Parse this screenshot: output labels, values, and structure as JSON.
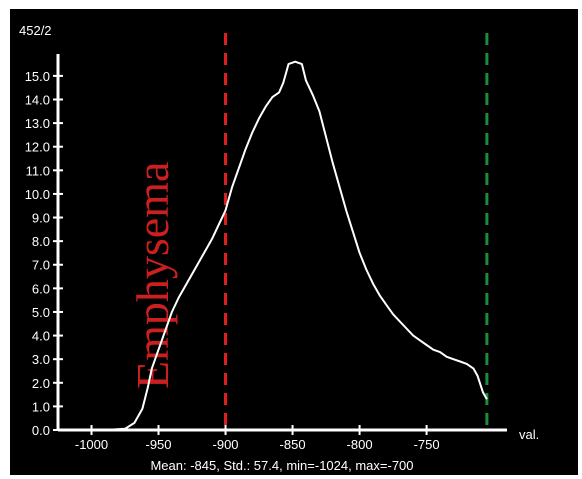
{
  "header": {
    "index_label": "452/2"
  },
  "footer": {
    "stats": "Mean: -845, Std.: 57.4, min=-1024, max=-700"
  },
  "chart_data": {
    "type": "line",
    "xlabel": "val.",
    "ylabel": "",
    "xlim": [
      -1025,
      -690
    ],
    "ylim": [
      0,
      15.8
    ],
    "x_ticks": [
      -1000,
      -950,
      -900,
      -850,
      -800,
      -750
    ],
    "y_ticks": [
      0.0,
      1.0,
      2.0,
      3.0,
      4.0,
      5.0,
      6.0,
      7.0,
      8.0,
      9.0,
      10.0,
      11.0,
      12.0,
      13.0,
      14.0,
      15.0
    ],
    "series": [
      {
        "color": "#ffffff",
        "x": [
          -990,
          -975,
          -968,
          -962,
          -958,
          -955,
          -950,
          -945,
          -940,
          -935,
          -930,
          -925,
          -920,
          -915,
          -910,
          -905,
          -900,
          -895,
          -890,
          -885,
          -880,
          -875,
          -870,
          -865,
          -860,
          -857,
          -855,
          -853,
          -848,
          -843,
          -840,
          -835,
          -830,
          -825,
          -820,
          -815,
          -810,
          -805,
          -800,
          -795,
          -790,
          -785,
          -780,
          -775,
          -770,
          -765,
          -760,
          -755,
          -750,
          -745,
          -740,
          -735,
          -730,
          -725,
          -720,
          -715,
          -712,
          -708,
          -705
        ],
        "y": [
          0.0,
          0.05,
          0.3,
          0.9,
          1.8,
          2.6,
          3.4,
          4.2,
          5.0,
          5.6,
          6.1,
          6.6,
          7.1,
          7.6,
          8.1,
          8.7,
          9.3,
          10.3,
          11.1,
          11.9,
          12.6,
          13.2,
          13.7,
          14.1,
          14.3,
          14.7,
          15.1,
          15.5,
          15.6,
          15.5,
          14.8,
          14.2,
          13.5,
          12.4,
          11.3,
          10.3,
          9.3,
          8.4,
          7.5,
          6.8,
          6.2,
          5.7,
          5.3,
          4.9,
          4.6,
          4.3,
          4.0,
          3.8,
          3.6,
          3.4,
          3.3,
          3.1,
          3.0,
          2.9,
          2.8,
          2.6,
          2.3,
          1.6,
          1.3
        ]
      }
    ],
    "markers": [
      {
        "x": -900,
        "color": "#e02020",
        "style": "dashed"
      },
      {
        "x": -705,
        "color": "#1a8c3a",
        "style": "dashed"
      }
    ],
    "annotations": [
      {
        "text": "Emphysema",
        "color": "#cc1f1f",
        "orientation": "vertical"
      }
    ],
    "grid": false
  }
}
